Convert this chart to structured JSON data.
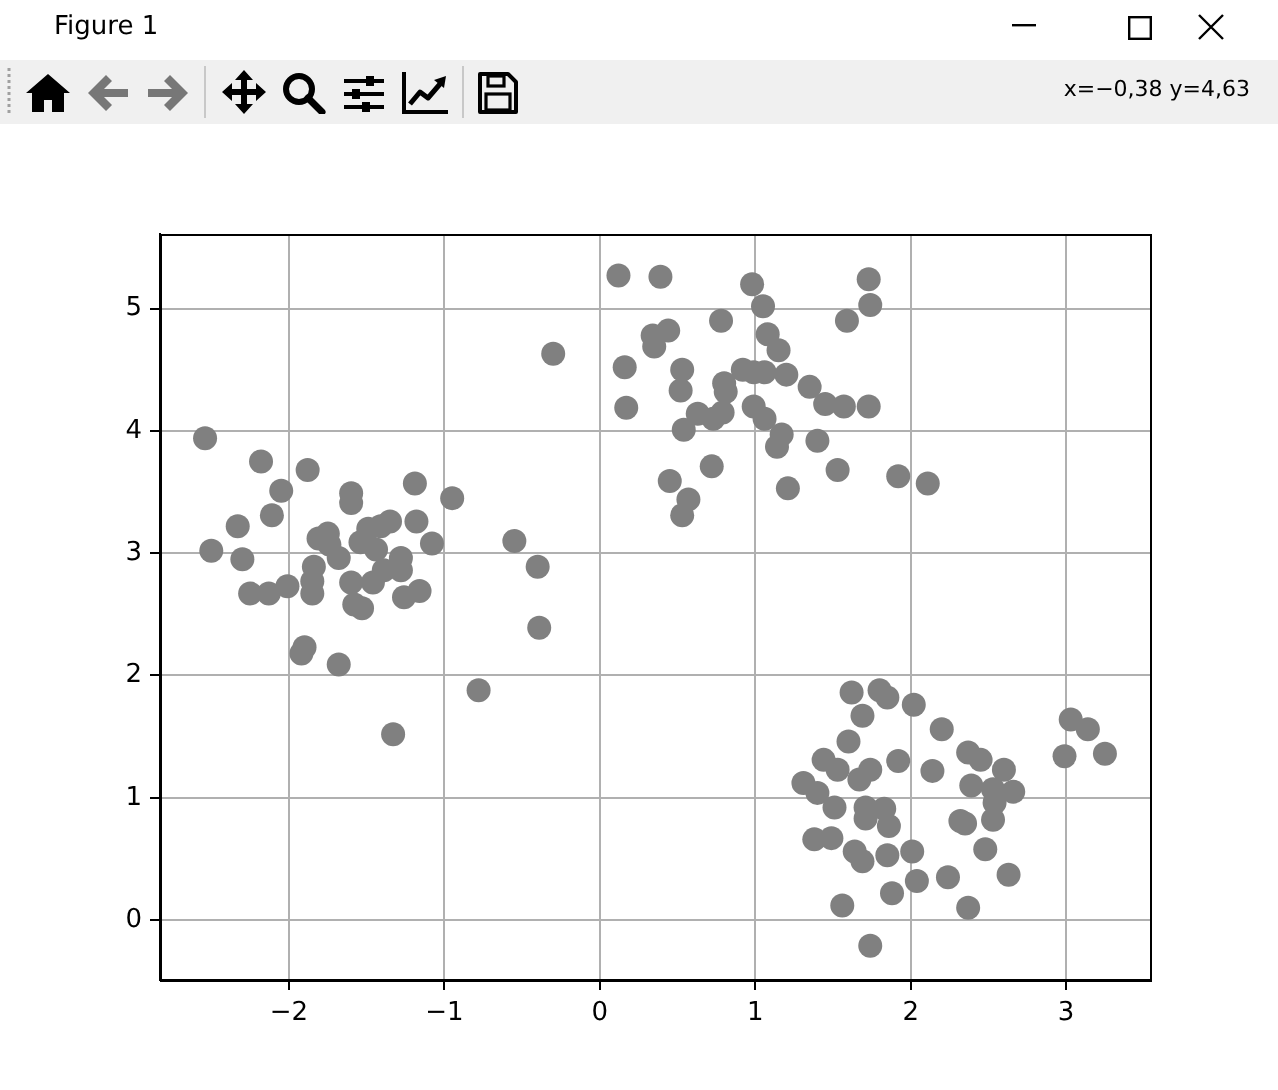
{
  "chart_data": {
    "type": "scatter",
    "x": [
      -2.54,
      -2.18,
      -1.88,
      -2.05,
      -1.6,
      -1.6,
      -1.19,
      -0.95,
      -2.11,
      -2.33,
      -2.5,
      -2.3,
      -2.25,
      -2.13,
      -2.01,
      -1.85,
      -1.85,
      -1.84,
      -1.81,
      -1.75,
      -1.74,
      -1.68,
      -1.6,
      -1.58,
      -1.53,
      -1.54,
      -1.49,
      -1.44,
      -1.41,
      -1.35,
      -1.46,
      -1.39,
      -1.28,
      -1.28,
      -1.18,
      -1.08,
      -1.26,
      -1.16,
      -1.92,
      -1.9,
      -1.68,
      -0.78,
      -1.33,
      -0.55,
      -0.3,
      -0.4,
      -0.39,
      0.16,
      0.17,
      0.34,
      0.44,
      0.35,
      0.12,
      0.39,
      0.98,
      1.73,
      1.05,
      1.74,
      1.59,
      0.78,
      1.08,
      1.15,
      0.53,
      0.92,
      0.99,
      1.06,
      1.2,
      0.8,
      0.81,
      0.52,
      1.35,
      1.45,
      1.57,
      1.73,
      0.99,
      1.06,
      0.63,
      0.73,
      0.79,
      0.54,
      1.17,
      1.14,
      1.4,
      1.53,
      0.72,
      0.45,
      1.21,
      1.92,
      2.11,
      0.57,
      0.53,
      1.62,
      1.8,
      1.85,
      2.02,
      1.69,
      2.2,
      3.03,
      3.14,
      3.25,
      2.99,
      1.6,
      1.44,
      1.53,
      1.92,
      1.67,
      1.74,
      2.14,
      2.37,
      2.45,
      2.6,
      2.39,
      2.53,
      2.66,
      1.31,
      1.4,
      1.51,
      1.71,
      1.83,
      1.71,
      1.86,
      2.54,
      2.53,
      2.32,
      2.35,
      1.38,
      1.49,
      1.64,
      1.69,
      1.85,
      2.01,
      2.48,
      2.04,
      2.24,
      2.63,
      1.88,
      1.56,
      2.37,
      1.74
    ],
    "values": [
      3.94,
      3.75,
      3.68,
      3.51,
      3.49,
      3.41,
      3.57,
      3.45,
      3.31,
      3.22,
      3.02,
      2.95,
      2.67,
      2.67,
      2.73,
      2.67,
      2.77,
      2.89,
      3.12,
      3.16,
      3.07,
      2.96,
      2.76,
      2.58,
      2.55,
      3.09,
      3.2,
      3.03,
      3.22,
      3.26,
      2.76,
      2.86,
      2.96,
      2.86,
      3.26,
      3.08,
      2.64,
      2.69,
      2.18,
      2.23,
      2.09,
      1.88,
      1.52,
      3.1,
      4.63,
      2.89,
      2.39,
      4.52,
      4.19,
      4.78,
      4.82,
      4.69,
      5.27,
      5.26,
      5.2,
      5.24,
      5.02,
      5.03,
      4.9,
      4.9,
      4.79,
      4.66,
      4.5,
      4.5,
      4.48,
      4.48,
      4.46,
      4.39,
      4.32,
      4.33,
      4.36,
      4.22,
      4.2,
      4.2,
      4.2,
      4.1,
      4.14,
      4.1,
      4.15,
      4.01,
      3.97,
      3.87,
      3.92,
      3.68,
      3.71,
      3.59,
      3.53,
      3.63,
      3.57,
      3.44,
      3.31,
      1.86,
      1.88,
      1.82,
      1.76,
      1.67,
      1.56,
      1.64,
      1.56,
      1.36,
      1.34,
      1.46,
      1.31,
      1.23,
      1.3,
      1.15,
      1.23,
      1.22,
      1.37,
      1.31,
      1.23,
      1.1,
      1.07,
      1.05,
      1.12,
      1.04,
      0.92,
      0.92,
      0.91,
      0.83,
      0.77,
      0.96,
      0.82,
      0.81,
      0.79,
      0.66,
      0.67,
      0.56,
      0.48,
      0.53,
      0.56,
      0.58,
      0.32,
      0.35,
      0.37,
      0.22,
      0.12,
      0.1,
      -0.21
    ],
    "color": "#808080",
    "marker": "circle",
    "xlim": [
      -2.83,
      3.54
    ],
    "ylim": [
      -0.49,
      5.61
    ],
    "xticks": [
      {
        "value": -2,
        "label": "−2"
      },
      {
        "value": -1,
        "label": "−1"
      },
      0,
      1,
      2,
      3
    ],
    "yticks": [
      0,
      1,
      2,
      3,
      4,
      5
    ],
    "grid": true,
    "annotations": [
      "Figure 1",
      "x=−0,38 y=4,63"
    ]
  }
}
